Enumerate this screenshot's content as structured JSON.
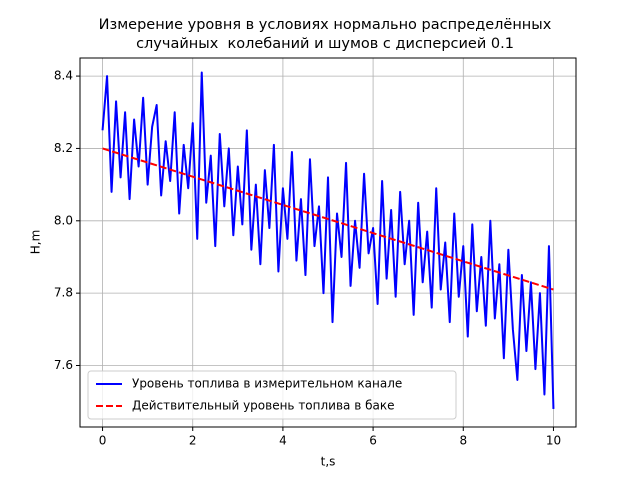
{
  "chart_data": {
    "type": "line",
    "title": [
      "Измерение уровня в условиях нормально распределённых",
      "случайных  колебаний и шумов с дисперсией 0.1"
    ],
    "x_label": "t,s",
    "y_label": "H,m",
    "xlim": [
      -0.5,
      10.5
    ],
    "ylim": [
      7.43,
      8.45
    ],
    "xticks": [
      0,
      2,
      4,
      6,
      8,
      10
    ],
    "yticks": [
      7.6,
      7.8,
      {
        "value": 8,
        "label": "8.0"
      },
      8.2,
      8.4
    ],
    "grid": true,
    "legend": "lower left",
    "series": [
      {
        "name": "Уровень топлива в измерительном канале",
        "color": "#0000ff",
        "linestyle": "solid",
        "x": [
          0,
          0.1,
          0.2,
          0.3,
          0.4,
          0.5,
          0.6,
          0.7,
          0.8,
          0.9,
          1,
          1.1,
          1.2,
          1.3,
          1.4,
          1.5,
          1.6,
          1.7,
          1.8,
          1.9,
          2,
          2.1,
          2.2,
          2.3,
          2.4,
          2.5,
          2.6,
          2.7,
          2.8,
          2.9,
          3,
          3.1,
          3.2,
          3.3,
          3.4,
          3.5,
          3.6,
          3.7,
          3.8,
          3.9,
          4,
          4.1,
          4.2,
          4.3,
          4.4,
          4.5,
          4.6,
          4.7,
          4.8,
          4.9,
          5,
          5.1,
          5.2,
          5.3,
          5.4,
          5.5,
          5.6,
          5.7,
          5.8,
          5.9,
          6,
          6.1,
          6.2,
          6.3,
          6.4,
          6.5,
          6.6,
          6.7,
          6.8,
          6.9,
          7,
          7.1,
          7.2,
          7.3,
          7.4,
          7.5,
          7.6,
          7.7,
          7.8,
          7.9,
          8,
          8.1,
          8.2,
          8.3,
          8.4,
          8.5,
          8.6,
          8.7,
          8.8,
          8.9,
          9,
          9.1,
          9.2,
          9.3,
          9.4,
          9.5,
          9.6,
          9.7,
          9.8,
          9.9,
          10
        ],
        "values": [
          8.25,
          8.4,
          8.08,
          8.33,
          8.12,
          8.3,
          8.06,
          8.28,
          8.15,
          8.34,
          8.1,
          8.26,
          8.32,
          8.07,
          8.22,
          8.11,
          8.3,
          8.02,
          8.21,
          8.09,
          8.27,
          7.95,
          8.41,
          8.05,
          8.18,
          7.93,
          8.24,
          8.04,
          8.2,
          7.96,
          8.15,
          7.99,
          8.25,
          7.92,
          8.1,
          7.88,
          8.14,
          7.98,
          8.21,
          7.86,
          8.09,
          7.95,
          8.19,
          7.89,
          8.06,
          7.85,
          8.17,
          7.93,
          8.04,
          7.8,
          8.12,
          7.72,
          8.02,
          7.9,
          8.16,
          7.82,
          8.0,
          7.87,
          8.13,
          7.91,
          7.98,
          7.77,
          8.11,
          7.84,
          8.03,
          7.79,
          8.08,
          7.88,
          8.0,
          7.74,
          8.05,
          7.83,
          7.97,
          7.76,
          8.09,
          7.81,
          7.94,
          7.72,
          8.02,
          7.79,
          7.93,
          7.68,
          7.99,
          7.75,
          7.9,
          7.71,
          8.0,
          7.73,
          7.88,
          7.62,
          7.92,
          7.7,
          7.56,
          7.85,
          7.64,
          7.83,
          7.59,
          7.8,
          7.52,
          7.93,
          7.48
        ]
      },
      {
        "name": "Действительный уровень топлива в баке",
        "color": "#ff0000",
        "linestyle": "dashed",
        "x": [
          0,
          10
        ],
        "values": [
          8.2,
          7.81
        ]
      }
    ]
  }
}
